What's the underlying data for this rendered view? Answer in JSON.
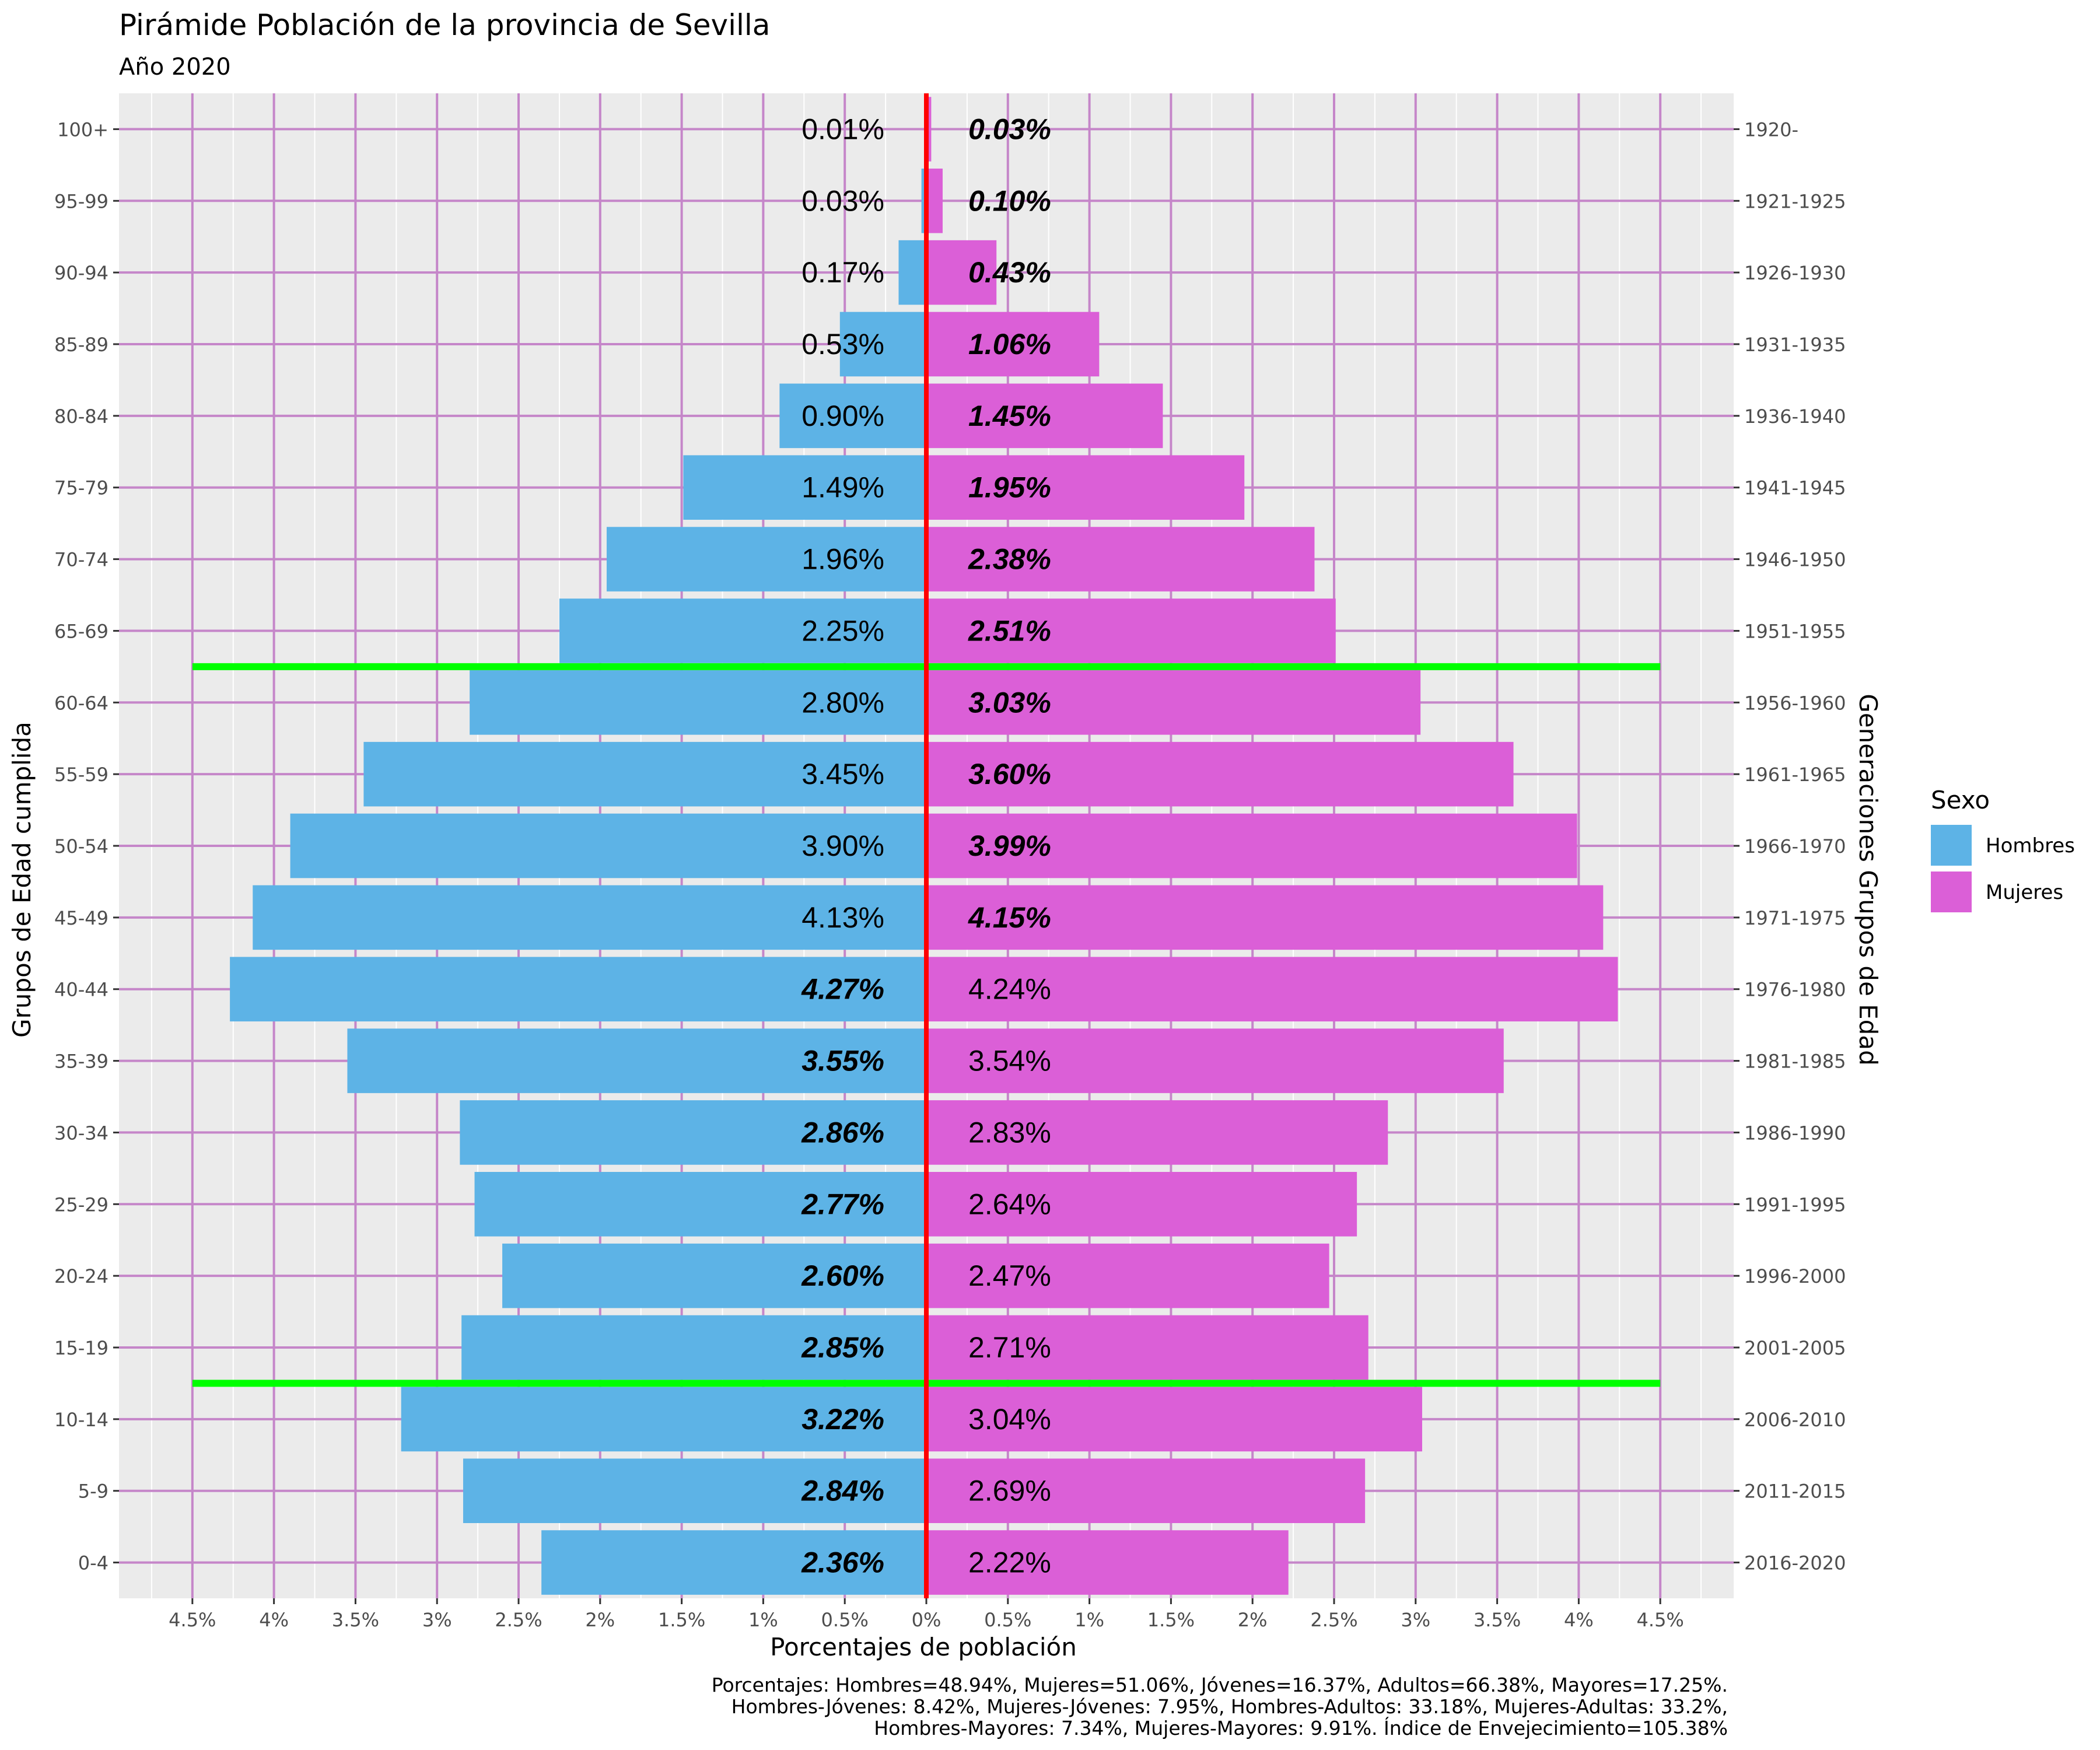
{
  "colors": {
    "hombres": "#5DB3E6",
    "mujeres": "#DB5FD7",
    "panel": "#EBEBEB",
    "grid_major": "#C586C9",
    "center_line": "#FF0000",
    "boundary_line": "#00FF00"
  },
  "chart_data": {
    "type": "bar",
    "orientation": "horizontal",
    "title": "Pirámide Población de la provincia de Sevilla",
    "subtitle": "Año 2020",
    "xlabel": "Porcentajes de población",
    "ylabel": "Grupos de Edad cumplida",
    "ylabel_right": "Generaciones Grupos de Edad",
    "xlim": [
      -4.5,
      4.5
    ],
    "x_ticks": [
      -4.5,
      -4,
      -3.5,
      -3,
      -2.5,
      -2,
      -1.5,
      -1,
      -0.5,
      0,
      0.5,
      1,
      1.5,
      2,
      2.5,
      3,
      3.5,
      4,
      4.5
    ],
    "x_tick_labels": [
      "4.5%",
      "4%",
      "3.5%",
      "3%",
      "2.5%",
      "2%",
      "1.5%",
      "1%",
      "0.5%",
      "0%",
      "0.5%",
      "1%",
      "1.5%",
      "2%",
      "2.5%",
      "3%",
      "3.5%",
      "4%",
      "4.5%"
    ],
    "categories": [
      "0-4",
      "5-9",
      "10-14",
      "15-19",
      "20-24",
      "25-29",
      "30-34",
      "35-39",
      "40-44",
      "45-49",
      "50-54",
      "55-59",
      "60-64",
      "65-69",
      "70-74",
      "75-79",
      "80-84",
      "85-89",
      "90-94",
      "95-99",
      "100+"
    ],
    "generations": [
      "2016-2020",
      "2011-2015",
      "2006-2010",
      "2001-2005",
      "1996-2000",
      "1991-1995",
      "1986-1990",
      "1981-1985",
      "1976-1980",
      "1971-1975",
      "1966-1970",
      "1961-1965",
      "1956-1960",
      "1951-1955",
      "1946-1950",
      "1941-1945",
      "1936-1940",
      "1931-1935",
      "1926-1930",
      "1921-1925",
      "1920-"
    ],
    "series": [
      {
        "name": "Hombres",
        "values": [
          2.36,
          2.84,
          3.22,
          2.85,
          2.6,
          2.77,
          2.86,
          3.55,
          4.27,
          4.13,
          3.9,
          3.45,
          2.8,
          2.25,
          1.96,
          1.49,
          0.9,
          0.53,
          0.17,
          0.03,
          0.01
        ],
        "labels": [
          "2.36%",
          "2.84%",
          "3.22%",
          "2.85%",
          "2.60%",
          "2.77%",
          "2.86%",
          "3.55%",
          "4.27%",
          "4.13%",
          "3.90%",
          "3.45%",
          "2.80%",
          "2.25%",
          "1.96%",
          "1.49%",
          "0.90%",
          "0.53%",
          "0.17%",
          "0.03%",
          "0.01%"
        ]
      },
      {
        "name": "Mujeres",
        "values": [
          2.22,
          2.69,
          3.04,
          2.71,
          2.47,
          2.64,
          2.83,
          3.54,
          4.24,
          4.15,
          3.99,
          3.6,
          3.03,
          2.51,
          2.38,
          1.95,
          1.45,
          1.06,
          0.43,
          0.1,
          0.03
        ],
        "labels": [
          "2.22%",
          "2.69%",
          "3.04%",
          "2.71%",
          "2.47%",
          "2.64%",
          "2.83%",
          "3.54%",
          "4.24%",
          "4.15%",
          "3.99%",
          "3.60%",
          "3.03%",
          "2.51%",
          "2.38%",
          "1.95%",
          "1.45%",
          "1.06%",
          "0.43%",
          "0.10%",
          "0.03%"
        ]
      }
    ],
    "boundary_lines_between": [
      [
        "15-19",
        "10-14"
      ],
      [
        "60-64",
        "65-69"
      ]
    ],
    "legend": {
      "title": "Sexo",
      "entries": [
        "Hombres",
        "Mujeres"
      ],
      "position": "right"
    },
    "grid": true,
    "caption": [
      "Porcentajes: Hombres=48.94%, Mujeres=51.06%, Jóvenes=16.37%, Adultos=66.38%, Mayores=17.25%.",
      "Hombres-Jóvenes: 8.42%, Mujeres-Jóvenes: 7.95%, Hombres-Adultos: 33.18%, Mujeres-Adultas: 33.2%,",
      "Hombres-Mayores: 7.34%, Mujeres-Mayores: 9.91%. Índice de Envejecimiento=105.38%"
    ]
  }
}
